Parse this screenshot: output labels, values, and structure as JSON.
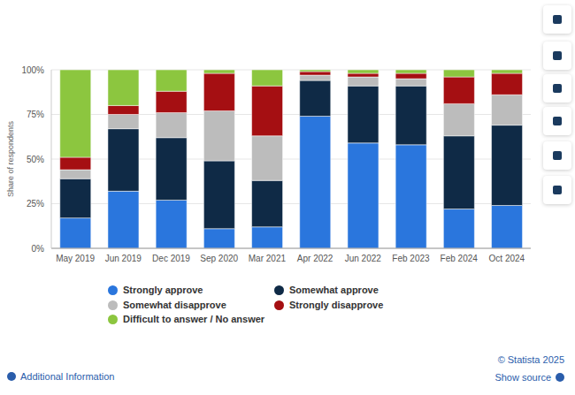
{
  "chart_data": {
    "type": "bar",
    "y_label": "Share of respondents",
    "categories": [
      "May 2019",
      "Jun 2019",
      "Dec 2019",
      "Sep 2020",
      "Mar 2021",
      "Apr 2022",
      "Jun 2022",
      "Feb 2023",
      "Feb 2024",
      "Oct 2024"
    ],
    "series": [
      {
        "name": "Strongly approve",
        "color": "#2a76dd",
        "values": [
          17,
          32,
          27,
          11,
          12,
          74,
          59,
          58,
          22,
          24
        ]
      },
      {
        "name": "Somewhat approve",
        "color": "#0f2a46",
        "values": [
          22,
          35,
          35,
          38,
          26,
          20,
          32,
          33,
          41,
          45
        ]
      },
      {
        "name": "Somewhat disapprove",
        "color": "#bcbcbc",
        "values": [
          5,
          8,
          14,
          28,
          25,
          3,
          5,
          4,
          18,
          17
        ]
      },
      {
        "name": "Strongly disapprove",
        "color": "#a50f12",
        "values": [
          7,
          5,
          12,
          21,
          28,
          2,
          2,
          3,
          15,
          12
        ]
      },
      {
        "name": "Difficult to answer / No answer",
        "color": "#8cc63f",
        "values": [
          49,
          20,
          12,
          2,
          9,
          1,
          2,
          2,
          4,
          2
        ]
      }
    ],
    "ylim": [
      0,
      100
    ],
    "yticks": [
      {
        "value": 0,
        "label": "0%"
      },
      {
        "value": 25,
        "label": "25%"
      },
      {
        "value": 50,
        "label": "50%"
      },
      {
        "value": 75,
        "label": "75%"
      },
      {
        "value": 100,
        "label": "100%"
      }
    ],
    "stacked": true,
    "grid": true,
    "legend": "bottom"
  },
  "footer": {
    "left": "Additional Information",
    "copyright": "© Statista 2025",
    "source": "Show source"
  }
}
